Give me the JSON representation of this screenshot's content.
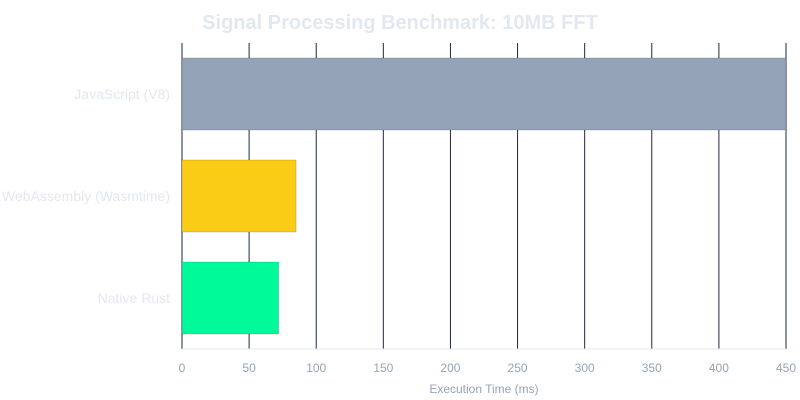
{
  "chart_data": {
    "type": "bar",
    "orientation": "horizontal",
    "title": "Signal Processing Benchmark: 10MB FFT",
    "xlabel": "Execution Time (ms)",
    "ylabel": "",
    "categories": [
      "JavaScript (V8)",
      "WebAssembly (Wasmtime)",
      "Native Rust"
    ],
    "values": [
      450,
      85,
      72
    ],
    "colors": [
      "#94a3b8",
      "#facc15",
      "#00fa9a"
    ],
    "xlim": [
      0,
      450
    ],
    "xticks": [
      "0",
      "50",
      "100",
      "150",
      "200",
      "250",
      "300",
      "350",
      "400",
      "450"
    ],
    "grid": true,
    "legend": "none"
  }
}
